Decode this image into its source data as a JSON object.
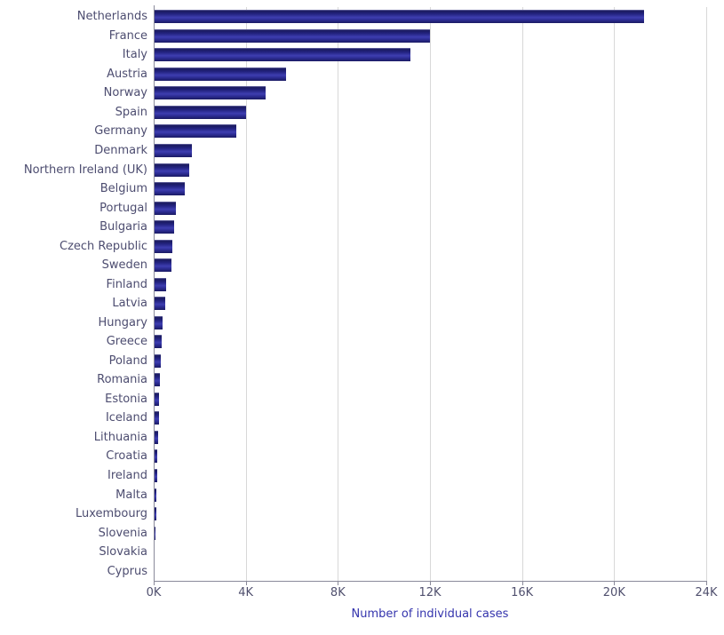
{
  "chart_data": {
    "type": "bar",
    "orientation": "horizontal",
    "title": "",
    "xlabel": "Number of individual cases",
    "ylabel": "",
    "xlim": [
      0,
      24000
    ],
    "x_ticks": [
      "0K",
      "4K",
      "8K",
      "12K",
      "16K",
      "20K",
      "24K"
    ],
    "x_tick_values": [
      0,
      4000,
      8000,
      12000,
      16000,
      20000,
      24000
    ],
    "grid": "vertical light-gray lines at each x tick",
    "legend": "none",
    "categories": [
      "Netherlands",
      "France",
      "Italy",
      "Austria",
      "Norway",
      "Spain",
      "Germany",
      "Denmark",
      "Northern Ireland (UK)",
      "Belgium",
      "Portugal",
      "Bulgaria",
      "Czech Republic",
      "Sweden",
      "Finland",
      "Latvia",
      "Hungary",
      "Greece",
      "Poland",
      "Romania",
      "Estonia",
      "Iceland",
      "Lithuania",
      "Croatia",
      "Ireland",
      "Malta",
      "Luxembourg",
      "Slovenia",
      "Slovakia",
      "Cyprus"
    ],
    "values": [
      21300,
      12000,
      11150,
      5750,
      4850,
      4000,
      3580,
      1660,
      1540,
      1360,
      980,
      900,
      820,
      760,
      550,
      500,
      370,
      350,
      305,
      270,
      235,
      215,
      190,
      165,
      150,
      115,
      100,
      60,
      5,
      0
    ],
    "colors": {
      "bar_base": "#22228c",
      "bar_gradient_top": "#1a1a5e",
      "bar_gradient_mid": "#3e3eb0",
      "bar_gradient_bottom": "#1b1b64",
      "gridline": "#d8d8d8",
      "axis_line": "#8a8a9a",
      "category_label": "#4d4d70",
      "tick_label": "#50506e",
      "axis_title": "#3434ad",
      "background": "#ffffff"
    }
  }
}
